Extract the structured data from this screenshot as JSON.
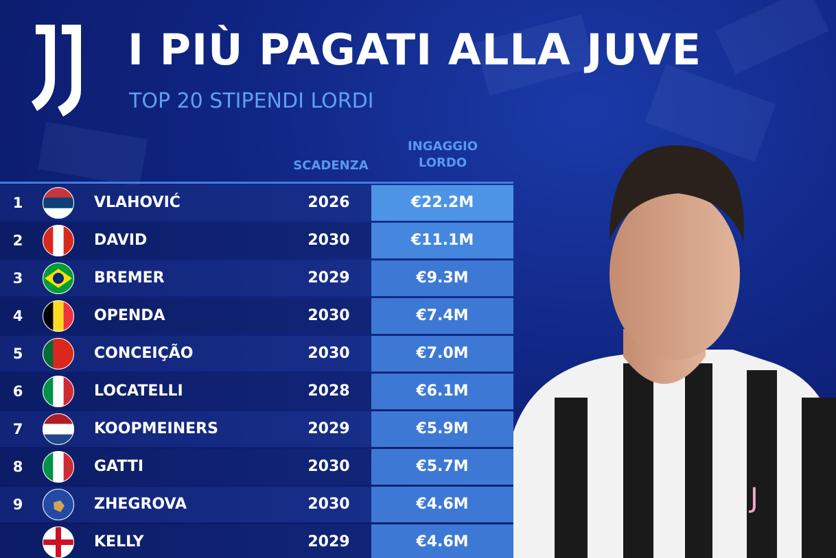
{
  "header": {
    "title": "I PIÙ PAGATI ALLA JUVE",
    "subtitle": "TOP 20 STIPENDI LORDI"
  },
  "table": {
    "columns": [
      "SCADENZA",
      "INGAGGIO LORDO"
    ],
    "rows": [
      {
        "rank": 1,
        "player": "VLAHOVIĆ",
        "expiry": 2026,
        "salary": "€22.2M"
      },
      {
        "rank": 2,
        "player": "DAVID",
        "expiry": 2030,
        "salary": "€11.1M"
      },
      {
        "rank": 3,
        "player": "BREMER",
        "expiry": 2029,
        "salary": "€9.3M"
      },
      {
        "rank": 4,
        "player": "OPENDA",
        "expiry": 2030,
        "salary": "€7.4M"
      },
      {
        "rank": 5,
        "player": "CONCEIÇÃO",
        "expiry": 2030,
        "salary": "€7.0M"
      },
      {
        "rank": 6,
        "player": "LOCATELLI",
        "expiry": 2028,
        "salary": "€6.1M"
      },
      {
        "rank": 7,
        "player": "KOOPMEINERS",
        "expiry": 2029,
        "salary": "€5.9M"
      },
      {
        "rank": 8,
        "player": "GATTI",
        "expiry": 2030,
        "salary": "€5.7M"
      },
      {
        "rank": 9,
        "player": "ZHEGROVA",
        "expiry": 2030,
        "salary": "€4.6M"
      },
      {
        "rank": null,
        "player": "KELLY",
        "expiry": 2029,
        "salary": "€4.6M"
      }
    ]
  }
}
